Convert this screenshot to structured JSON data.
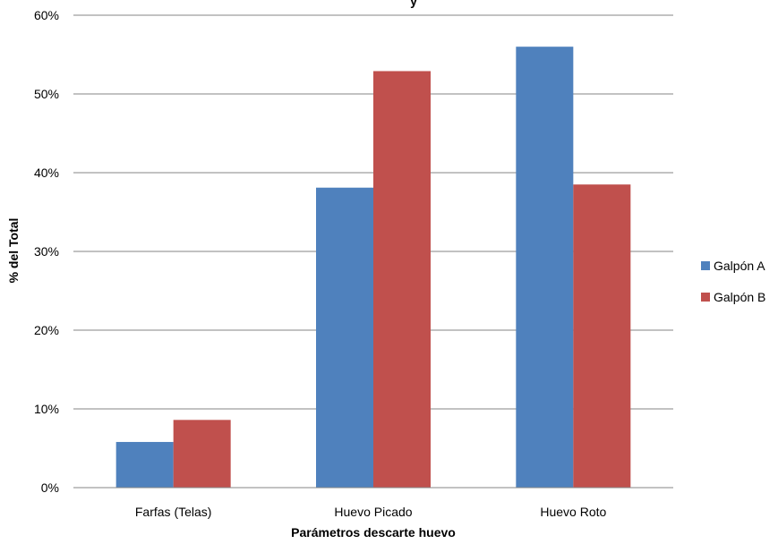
{
  "chart_data": {
    "type": "bar",
    "title": "",
    "title_fragment": "y",
    "categories": [
      "Farfas (Telas)",
      "Huevo Picado",
      "Huevo Roto"
    ],
    "series": [
      {
        "name": "Galpón A",
        "color": "#4F81BD",
        "values": [
          5.8,
          38.1,
          56.0
        ]
      },
      {
        "name": "Galpón B",
        "color": "#C0504D",
        "values": [
          8.6,
          52.9,
          38.5
        ]
      }
    ],
    "xlabel": "Parámetros descarte huevo",
    "ylabel": "% del Total",
    "ylim": [
      0,
      60
    ],
    "yticks": [
      0,
      10,
      20,
      30,
      40,
      50,
      60
    ],
    "ytick_suffix": "%",
    "grid": true,
    "legend_position": "right"
  }
}
